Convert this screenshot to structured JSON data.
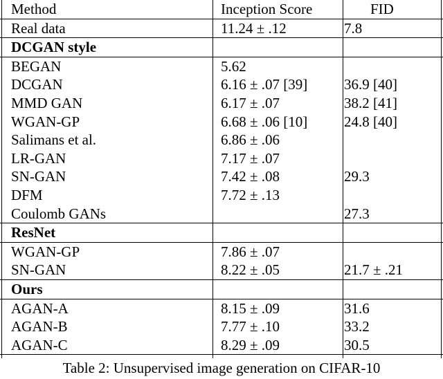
{
  "table": {
    "headers": {
      "method": "Method",
      "inception": "Inception Score",
      "fid": "FID"
    },
    "real": {
      "method": "Real data",
      "inception": "11.24 ± .12",
      "fid": "7.8"
    },
    "groups": [
      {
        "title": "DCGAN style",
        "rows": [
          {
            "method": "BEGAN",
            "inception": "5.62",
            "fid": ""
          },
          {
            "method": "DCGAN",
            "inception": "6.16 ± .07 [39]",
            "fid": "36.9 [40]"
          },
          {
            "method": "MMD GAN",
            "inception": "6.17 ± .07",
            "fid": "38.2 [41]"
          },
          {
            "method": "WGAN-GP",
            "inception": "6.68 ± .06 [10]",
            "fid": "24.8 [40]"
          },
          {
            "method": "Salimans et al.",
            "inception": "6.86 ± .06",
            "fid": ""
          },
          {
            "method": "LR-GAN",
            "inception": "7.17 ± .07",
            "fid": ""
          },
          {
            "method": "SN-GAN",
            "inception": "7.42 ± .08",
            "fid": "29.3"
          },
          {
            "method": "DFM",
            "inception": "7.72 ± .13",
            "fid": ""
          },
          {
            "method": "Coulomb GANs",
            "inception": "",
            "fid": "27.3"
          }
        ]
      },
      {
        "title": "ResNet",
        "rows": [
          {
            "method": "WGAN-GP",
            "inception": "7.86 ± .07",
            "fid": ""
          },
          {
            "method": "SN-GAN",
            "inception": "8.22 ± .05",
            "fid": "21.7 ± .21"
          }
        ]
      },
      {
        "title": "Ours",
        "rows": [
          {
            "method": "AGAN-A",
            "inception": "8.15 ± .09",
            "fid": "31.6"
          },
          {
            "method": "AGAN-B",
            "inception": "7.77 ± .10",
            "fid": "33.2"
          },
          {
            "method": "AGAN-C",
            "inception": "8.29 ± .09",
            "fid": "30.5"
          }
        ]
      }
    ]
  },
  "caption": "Table 2: Unsupervised image generation on CIFAR-10"
}
